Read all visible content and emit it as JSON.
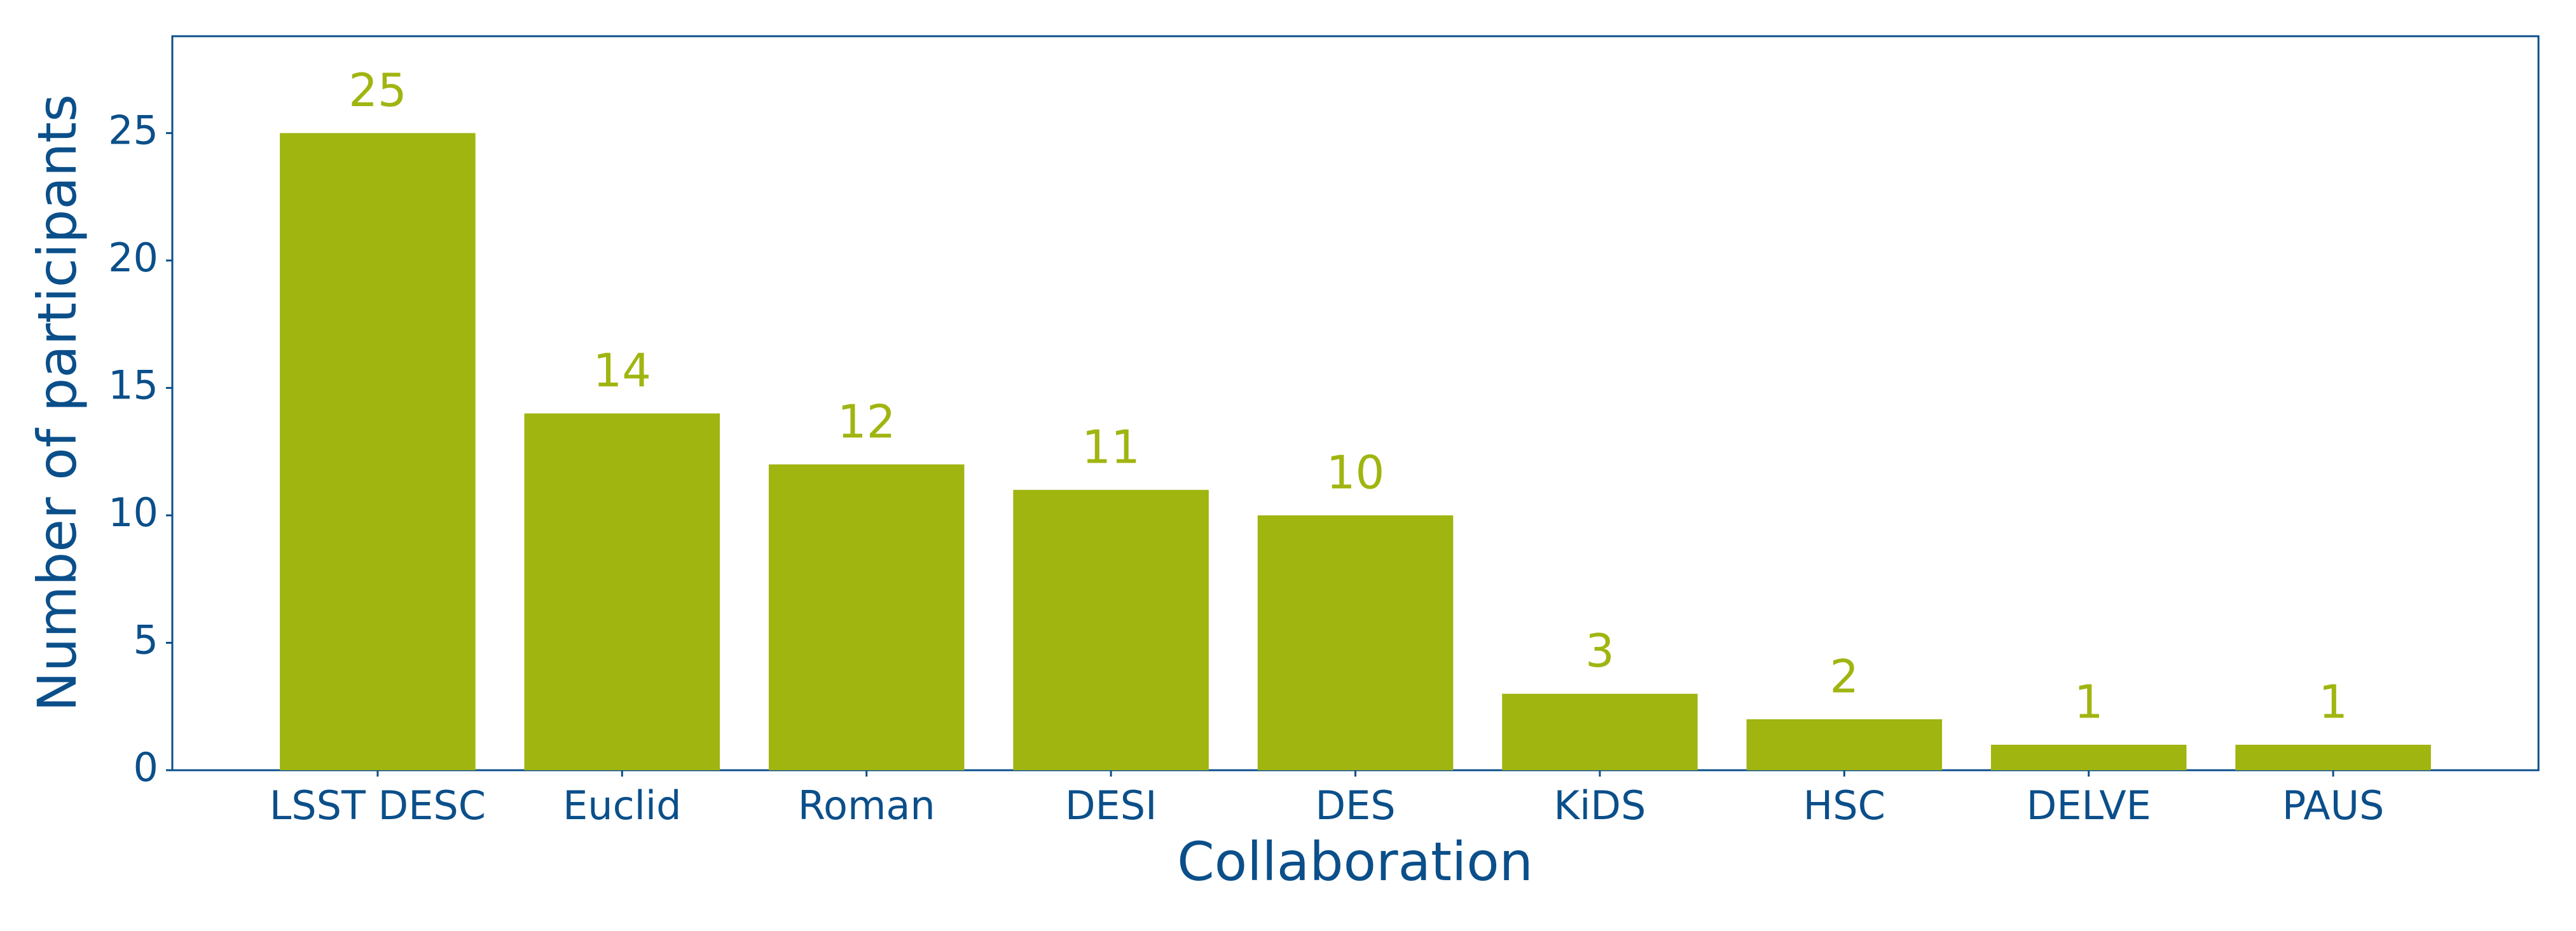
{
  "chart_data": {
    "type": "bar",
    "x_label": "Collaboration",
    "y_label": "Number of participants",
    "categories": [
      "LSST DESC",
      "Euclid",
      "Roman",
      "DESI",
      "DES",
      "KiDS",
      "HSC",
      "DELVE",
      "PAUS"
    ],
    "values": [
      25,
      14,
      12,
      11,
      10,
      3,
      2,
      1,
      1
    ],
    "color": "#a0b510",
    "ylim": [
      0,
      28.8
    ],
    "yticks": [
      0,
      5,
      10,
      15,
      20,
      25
    ],
    "grid": false
  }
}
